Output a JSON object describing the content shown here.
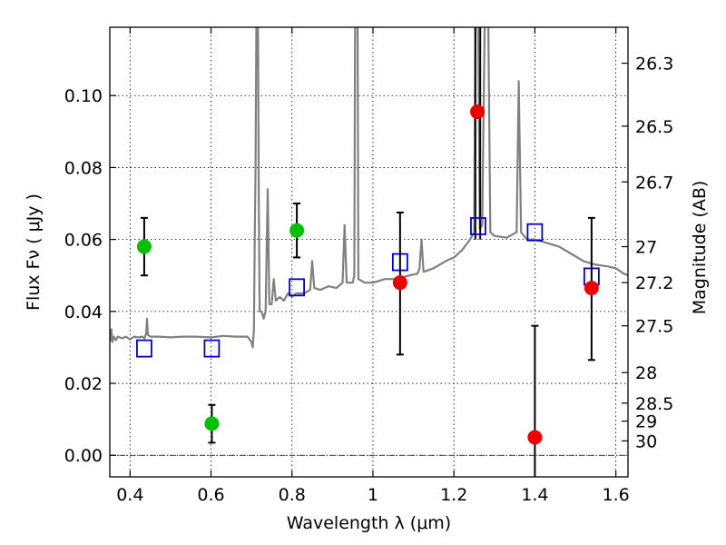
{
  "chart_data": {
    "type": "scatter",
    "xlabel": "Wavelength  λ (μm)",
    "ylabel_left": "Flux  Fν  ( μJy )",
    "ylabel_right": "Magnitude (AB)",
    "xlim": [
      0.35,
      1.63
    ],
    "ylim": [
      -0.006,
      0.119
    ],
    "grid": true,
    "x_ticks": [
      {
        "value": 0.4,
        "label": "0.4"
      },
      {
        "value": 0.6,
        "label": "0.6"
      },
      {
        "value": 0.8,
        "label": "0.8"
      },
      {
        "value": 1.0,
        "label": "1"
      },
      {
        "value": 1.2,
        "label": "1.2"
      },
      {
        "value": 1.4,
        "label": "1.4"
      },
      {
        "value": 1.6,
        "label": "1.6"
      }
    ],
    "y_ticks": [
      {
        "value": 0.0,
        "label": "0.00"
      },
      {
        "value": 0.02,
        "label": "0.02"
      },
      {
        "value": 0.04,
        "label": "0.04"
      },
      {
        "value": 0.06,
        "label": "0.06"
      },
      {
        "value": 0.08,
        "label": "0.08"
      },
      {
        "value": 0.1,
        "label": "0.10"
      }
    ],
    "right_ticks": [
      {
        "flux": 0.109,
        "label": "26.3"
      },
      {
        "flux": 0.0915,
        "label": "26.5"
      },
      {
        "flux": 0.076,
        "label": "26.7"
      },
      {
        "flux": 0.058,
        "label": "27"
      },
      {
        "flux": 0.048,
        "label": "27.2"
      },
      {
        "flux": 0.036,
        "label": "27.5"
      },
      {
        "flux": 0.023,
        "label": "28"
      },
      {
        "flux": 0.0145,
        "label": "28.5"
      },
      {
        "flux": 0.0095,
        "label": "29"
      },
      {
        "flux": 0.004,
        "label": "30"
      }
    ],
    "spectrum": {
      "color": "#808080",
      "points": [
        [
          0.35,
          0.0325
        ],
        [
          0.352,
          0.032
        ],
        [
          0.354,
          0.035
        ],
        [
          0.356,
          0.0315
        ],
        [
          0.36,
          0.033
        ],
        [
          0.365,
          0.032
        ],
        [
          0.37,
          0.033
        ],
        [
          0.38,
          0.0325
        ],
        [
          0.39,
          0.033
        ],
        [
          0.4,
          0.0322
        ],
        [
          0.41,
          0.033
        ],
        [
          0.42,
          0.0328
        ],
        [
          0.43,
          0.033
        ],
        [
          0.436,
          0.0325
        ],
        [
          0.44,
          0.034
        ],
        [
          0.442,
          0.038
        ],
        [
          0.444,
          0.0335
        ],
        [
          0.45,
          0.033
        ],
        [
          0.47,
          0.033
        ],
        [
          0.5,
          0.0328
        ],
        [
          0.53,
          0.033
        ],
        [
          0.56,
          0.033
        ],
        [
          0.6,
          0.0328
        ],
        [
          0.63,
          0.0332
        ],
        [
          0.66,
          0.033
        ],
        [
          0.69,
          0.033
        ],
        [
          0.7,
          0.0315
        ],
        [
          0.703,
          0.03
        ],
        [
          0.706,
          0.035
        ],
        [
          0.708,
          0.06
        ],
        [
          0.71,
          0.08
        ],
        [
          0.712,
          0.12
        ],
        [
          0.716,
          0.12
        ],
        [
          0.718,
          0.07
        ],
        [
          0.72,
          0.04
        ],
        [
          0.725,
          0.04
        ],
        [
          0.73,
          0.038
        ],
        [
          0.735,
          0.04
        ],
        [
          0.74,
          0.074
        ],
        [
          0.744,
          0.042
        ],
        [
          0.75,
          0.042
        ],
        [
          0.755,
          0.049
        ],
        [
          0.76,
          0.043
        ],
        [
          0.77,
          0.044
        ],
        [
          0.78,
          0.043
        ],
        [
          0.79,
          0.045
        ],
        [
          0.8,
          0.044
        ],
        [
          0.81,
          0.045
        ],
        [
          0.83,
          0.045
        ],
        [
          0.845,
          0.046
        ],
        [
          0.85,
          0.054
        ],
        [
          0.855,
          0.0465
        ],
        [
          0.87,
          0.046
        ],
        [
          0.89,
          0.047
        ],
        [
          0.91,
          0.0465
        ],
        [
          0.925,
          0.048
        ],
        [
          0.93,
          0.064
        ],
        [
          0.935,
          0.048
        ],
        [
          0.95,
          0.048
        ],
        [
          0.954,
          0.05
        ],
        [
          0.956,
          0.12
        ],
        [
          0.962,
          0.12
        ],
        [
          0.964,
          0.049
        ],
        [
          0.98,
          0.048
        ],
        [
          1.0,
          0.048
        ],
        [
          1.03,
          0.049
        ],
        [
          1.06,
          0.049
        ],
        [
          1.09,
          0.05
        ],
        [
          1.11,
          0.0505
        ],
        [
          1.115,
          0.052
        ],
        [
          1.12,
          0.06
        ],
        [
          1.125,
          0.051
        ],
        [
          1.15,
          0.052
        ],
        [
          1.18,
          0.054
        ],
        [
          1.2,
          0.055
        ],
        [
          1.22,
          0.057
        ],
        [
          1.24,
          0.06
        ],
        [
          1.25,
          0.062
        ],
        [
          1.253,
          0.12
        ],
        [
          1.26,
          0.12
        ],
        [
          1.264,
          0.063
        ],
        [
          1.27,
          0.064
        ],
        [
          1.276,
          0.12
        ],
        [
          1.285,
          0.12
        ],
        [
          1.29,
          0.062
        ],
        [
          1.3,
          0.061
        ],
        [
          1.33,
          0.0605
        ],
        [
          1.355,
          0.062
        ],
        [
          1.36,
          0.104
        ],
        [
          1.366,
          0.062
        ],
        [
          1.38,
          0.06
        ],
        [
          1.4,
          0.06
        ],
        [
          1.43,
          0.059
        ],
        [
          1.46,
          0.058
        ],
        [
          1.49,
          0.056
        ],
        [
          1.52,
          0.054
        ],
        [
          1.55,
          0.053
        ],
        [
          1.58,
          0.0525
        ],
        [
          1.6,
          0.052
        ],
        [
          1.62,
          0.0505
        ],
        [
          1.63,
          0.05
        ]
      ]
    },
    "vlines": [
      {
        "x": 1.253,
        "color": "#000000"
      },
      {
        "x": 1.265,
        "color": "#000000"
      }
    ],
    "squares": {
      "color": "#0000cc",
      "points": [
        {
          "x": 0.435,
          "y": 0.0297
        },
        {
          "x": 0.602,
          "y": 0.0297
        },
        {
          "x": 0.812,
          "y": 0.0467
        },
        {
          "x": 1.067,
          "y": 0.0537
        },
        {
          "x": 1.26,
          "y": 0.0637
        },
        {
          "x": 1.4,
          "y": 0.062
        },
        {
          "x": 1.54,
          "y": 0.0497
        }
      ]
    },
    "errorbars": {
      "color": "#000000",
      "points": [
        {
          "x": 0.435,
          "y": 0.058,
          "low": 0.05,
          "high": 0.066
        },
        {
          "x": 0.602,
          "y": 0.0088,
          "low": 0.0035,
          "high": 0.014
        },
        {
          "x": 0.812,
          "y": 0.0625,
          "low": 0.055,
          "high": 0.07
        },
        {
          "x": 1.067,
          "y": 0.048,
          "low": 0.028,
          "high": 0.0675
        },
        {
          "x": 1.4,
          "y": 0.005,
          "low": -0.006,
          "high": 0.036
        },
        {
          "x": 1.54,
          "y": 0.0465,
          "low": 0.0265,
          "high": 0.066
        }
      ]
    },
    "detections_green": {
      "color": "#00c000",
      "points": [
        {
          "x": 0.435,
          "y": 0.058
        },
        {
          "x": 0.602,
          "y": 0.0088
        },
        {
          "x": 0.812,
          "y": 0.0625
        }
      ]
    },
    "detections_red": {
      "color": "#ee0000",
      "points": [
        {
          "x": 1.067,
          "y": 0.048
        },
        {
          "x": 1.258,
          "y": 0.0955
        },
        {
          "x": 1.4,
          "y": 0.005
        },
        {
          "x": 1.54,
          "y": 0.0465
        }
      ]
    }
  }
}
